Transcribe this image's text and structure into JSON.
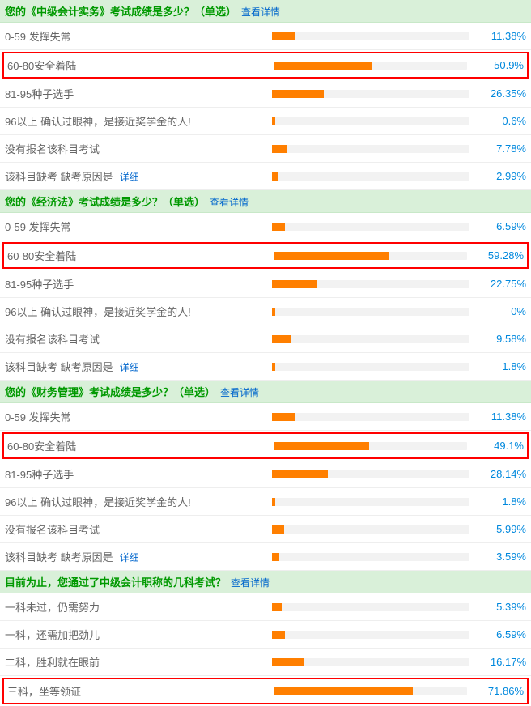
{
  "colors": {
    "header_bg": "#d9f0d9",
    "header_text": "#009900",
    "link": "#0066cc",
    "bar_bg": "#f2f2f2",
    "bar_fill": "#ff7f00",
    "pct_text": "#0088dd",
    "label_text": "#666666",
    "highlight_border": "#ff0000",
    "row_border": "#eeeeee"
  },
  "detail_text": "查看详情",
  "inline_detail_text": "详细",
  "sections": [
    {
      "title": "您的《中级会计实务》考试成绩是多少？（单选）",
      "rows": [
        {
          "label": "0-59 发挥失常",
          "pct": 11.38,
          "pct_text": "11.38%",
          "highlight": false,
          "detail": false
        },
        {
          "label": "60-80安全着陆",
          "pct": 50.9,
          "pct_text": "50.9%",
          "highlight": true,
          "detail": false
        },
        {
          "label": "81-95种子选手",
          "pct": 26.35,
          "pct_text": "26.35%",
          "highlight": false,
          "detail": false
        },
        {
          "label": "96以上 确认过眼神，是接近奖学金的人!",
          "pct": 0.6,
          "pct_text": "0.6%",
          "highlight": false,
          "detail": false
        },
        {
          "label": "没有报名该科目考试",
          "pct": 7.78,
          "pct_text": "7.78%",
          "highlight": false,
          "detail": false
        },
        {
          "label": "该科目缺考 缺考原因是",
          "pct": 2.99,
          "pct_text": "2.99%",
          "highlight": false,
          "detail": true
        }
      ]
    },
    {
      "title": "您的《经济法》考试成绩是多少？（单选）",
      "rows": [
        {
          "label": "0-59 发挥失常",
          "pct": 6.59,
          "pct_text": "6.59%",
          "highlight": false,
          "detail": false
        },
        {
          "label": "60-80安全着陆",
          "pct": 59.28,
          "pct_text": "59.28%",
          "highlight": true,
          "detail": false
        },
        {
          "label": "81-95种子选手",
          "pct": 22.75,
          "pct_text": "22.75%",
          "highlight": false,
          "detail": false
        },
        {
          "label": "96以上 确认过眼神，是接近奖学金的人!",
          "pct": 0,
          "pct_text": "0%",
          "highlight": false,
          "detail": false
        },
        {
          "label": "没有报名该科目考试",
          "pct": 9.58,
          "pct_text": "9.58%",
          "highlight": false,
          "detail": false
        },
        {
          "label": "该科目缺考 缺考原因是",
          "pct": 1.8,
          "pct_text": "1.8%",
          "highlight": false,
          "detail": true
        }
      ]
    },
    {
      "title": "您的《财务管理》考试成绩是多少？（单选）",
      "rows": [
        {
          "label": "0-59 发挥失常",
          "pct": 11.38,
          "pct_text": "11.38%",
          "highlight": false,
          "detail": false
        },
        {
          "label": "60-80安全着陆",
          "pct": 49.1,
          "pct_text": "49.1%",
          "highlight": true,
          "detail": false
        },
        {
          "label": "81-95种子选手",
          "pct": 28.14,
          "pct_text": "28.14%",
          "highlight": false,
          "detail": false
        },
        {
          "label": "96以上 确认过眼神，是接近奖学金的人!",
          "pct": 1.8,
          "pct_text": "1.8%",
          "highlight": false,
          "detail": false
        },
        {
          "label": "没有报名该科目考试",
          "pct": 5.99,
          "pct_text": "5.99%",
          "highlight": false,
          "detail": false
        },
        {
          "label": "该科目缺考 缺考原因是",
          "pct": 3.59,
          "pct_text": "3.59%",
          "highlight": false,
          "detail": true
        }
      ]
    },
    {
      "title": "目前为止，您通过了中级会计职称的几科考试？",
      "rows": [
        {
          "label": "一科未过，仍需努力",
          "pct": 5.39,
          "pct_text": "5.39%",
          "highlight": false,
          "detail": false
        },
        {
          "label": "一科，还需加把劲儿",
          "pct": 6.59,
          "pct_text": "6.59%",
          "highlight": false,
          "detail": false
        },
        {
          "label": "二科，胜利就在眼前",
          "pct": 16.17,
          "pct_text": "16.17%",
          "highlight": false,
          "detail": false
        },
        {
          "label": "三科，坐等领证",
          "pct": 71.86,
          "pct_text": "71.86%",
          "highlight": true,
          "detail": false
        }
      ]
    }
  ]
}
